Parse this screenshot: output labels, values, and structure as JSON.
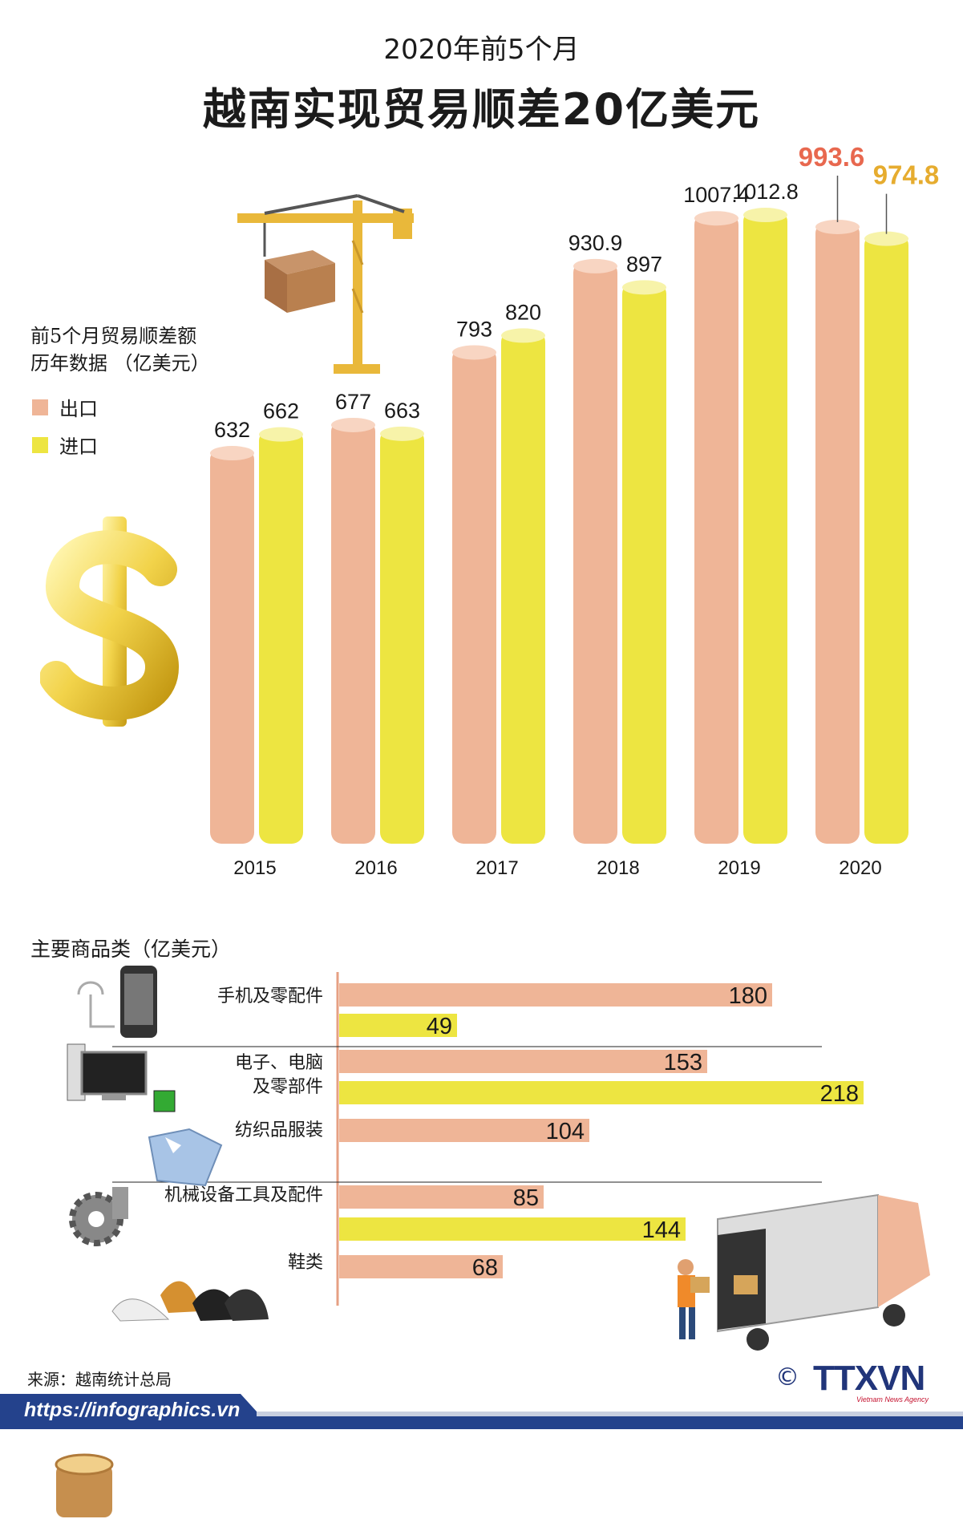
{
  "header": {
    "subtitle": "2020年前5个月",
    "title": "越南实现贸易顺差20亿美元"
  },
  "legend": {
    "title_line1": "前5个月贸易顺差额",
    "title_line2": "历年数据 （亿美元）",
    "export_label": "出口",
    "import_label": "进口"
  },
  "colors": {
    "export": "#efb597",
    "export_top": "#f8d5c2",
    "import": "#ede541",
    "import_top": "#f7f3a9",
    "highlight_export_value": "#e8684f",
    "highlight_import_value": "#e6ac2f",
    "footer_bar": "#24428c"
  },
  "chart_data": [
    {
      "type": "bar",
      "categories": [
        "2015",
        "2016",
        "2017",
        "2018",
        "2019",
        "2020"
      ],
      "series": [
        {
          "name": "出口",
          "values": [
            632,
            677,
            793,
            930.9,
            1007.4,
            993.6
          ]
        },
        {
          "name": "进口",
          "values": [
            662,
            663,
            820,
            897,
            1012.8,
            974.8
          ]
        }
      ],
      "value_labels": {
        "export": [
          "632",
          "677",
          "793",
          "930.9",
          "1007.4",
          "993.6"
        ],
        "import": [
          "662",
          "663",
          "820",
          "897",
          "1012.8",
          "974.8"
        ]
      },
      "grid": false,
      "legend_position": "left"
    },
    {
      "type": "bar",
      "orientation": "horizontal",
      "title": "主要商品类（亿美元）",
      "categories": [
        "手机及零配件",
        "电子、电脑及零部件",
        "纺织品服装",
        "机械设备工具及配件",
        "鞋类"
      ],
      "category_lines": [
        [
          "手机及零配件"
        ],
        [
          "电子、电脑",
          "及零部件"
        ],
        [
          "纺织品服装"
        ],
        [
          "机械设备工具及配件"
        ],
        [
          "鞋类"
        ]
      ],
      "series": [
        {
          "name": "出口",
          "values": [
            180,
            153,
            104,
            85,
            68
          ]
        },
        {
          "name": "进口",
          "values": [
            49,
            218,
            null,
            144,
            null
          ]
        }
      ],
      "value_labels": {
        "export": [
          "180",
          "153",
          "104",
          "85",
          "68"
        ],
        "import": [
          "49",
          "218",
          "",
          "144",
          ""
        ]
      }
    }
  ],
  "footer": {
    "source": "来源：越南统计总局",
    "url": "https://infographics.vn",
    "copyright": "©",
    "agency": "TTXVN",
    "agency_sub": "Vietnam News Agency"
  }
}
